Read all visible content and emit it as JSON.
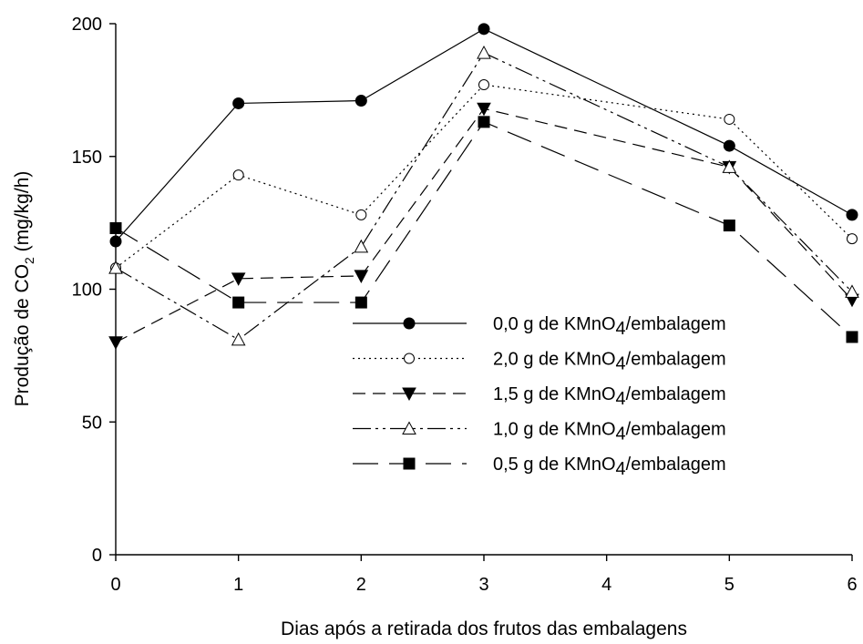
{
  "chart_data": {
    "type": "line",
    "title": "",
    "xlabel": "Dias após a retirada dos frutos das embalagens",
    "ylabel_main": "Produção de CO",
    "ylabel_sub": "2",
    "ylabel_tail": " (mg/kg/h)",
    "x": [
      0,
      1,
      2,
      3,
      5,
      6
    ],
    "xlim": [
      0,
      6
    ],
    "ylim": [
      0,
      200
    ],
    "xticks": [
      "0",
      "1",
      "2",
      "3",
      "4",
      "5",
      "6"
    ],
    "yticks": [
      "0",
      "50",
      "100",
      "150",
      "200"
    ],
    "grid": false,
    "legend_position": "lower-right",
    "series": [
      {
        "label_pre": "0,0 g de KMnO",
        "label_sub": "4",
        "label_post": "/embalagem",
        "marker": "filled-circle",
        "dash": "",
        "values": [
          118,
          170,
          171,
          198,
          154,
          128
        ]
      },
      {
        "label_pre": "2,0 g de KMnO",
        "label_sub": "4",
        "label_post": "/embalagem",
        "marker": "open-circle",
        "dash": "2,4",
        "values": [
          108,
          143,
          128,
          177,
          164,
          119
        ]
      },
      {
        "label_pre": "1,5 g de KMnO",
        "label_sub": "4",
        "label_post": "/embalagem",
        "marker": "filled-triangle-down",
        "dash": "14,8",
        "values": [
          80,
          104,
          105,
          168,
          146,
          96
        ]
      },
      {
        "label_pre": "1,0 g de KMnO",
        "label_sub": "4",
        "label_post": "/embalagem",
        "marker": "open-triangle-up",
        "dash": "20,5,3,5,3,5",
        "values": [
          108,
          81,
          116,
          189,
          146,
          99
        ]
      },
      {
        "label_pre": "0,5 g de KMnO",
        "label_sub": "4",
        "label_post": "/embalagem",
        "marker": "filled-square",
        "dash": "28,12",
        "values": [
          123,
          95,
          95,
          163,
          124,
          82
        ]
      }
    ]
  }
}
